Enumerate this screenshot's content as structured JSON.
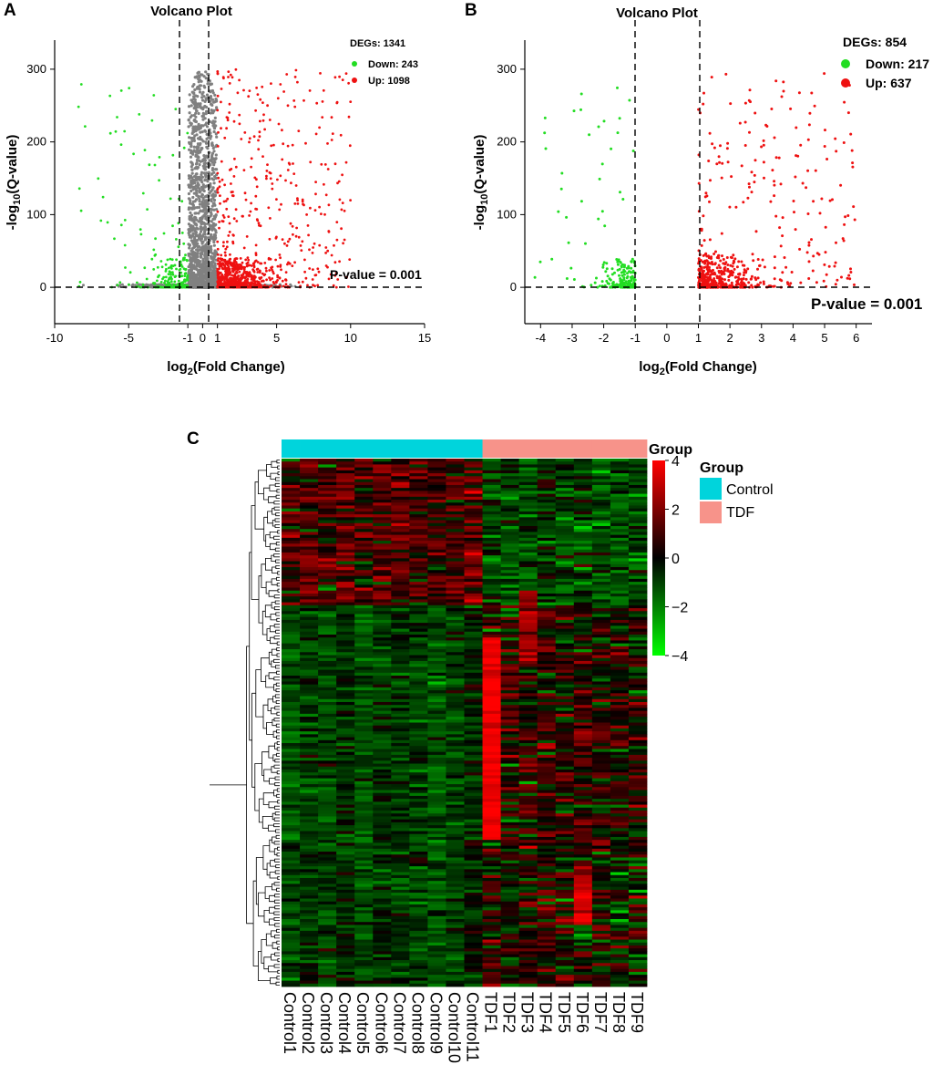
{
  "chart_data": [
    {
      "panel": "A",
      "type": "scatter",
      "title": "Volcano Plot",
      "xlabel": "log2(Fold Change)",
      "ylabel": "-log10(Q-value)",
      "xlim": [
        -10,
        15
      ],
      "ylim": [
        -50,
        340
      ],
      "xticks": [
        -10,
        -5,
        -1,
        0,
        1,
        5,
        10,
        15
      ],
      "yticks": [
        0,
        100,
        200,
        300
      ],
      "fc_threshold_lines": [
        -1,
        1
      ],
      "pvalue_line": 0,
      "pvalue_label": "P-value = 0.001",
      "degs_label": "DEGs: 1341",
      "legend": [
        {
          "label": "Down: 243",
          "color": "#22dd22"
        },
        {
          "label": "Up: 1098",
          "color": "#ee1111"
        }
      ],
      "series": [
        {
          "name": "Down",
          "color": "#22dd22",
          "count": 243
        },
        {
          "name": "Up",
          "color": "#ee1111",
          "count": 1098
        },
        {
          "name": "Not significant",
          "color": "#888888"
        }
      ]
    },
    {
      "panel": "B",
      "type": "scatter",
      "title": "Volcano Plot",
      "xlabel": "log2(Fold Change)",
      "ylabel": "-log10(Q-value)",
      "xlim": [
        -4.5,
        6.5
      ],
      "ylim": [
        -50,
        340
      ],
      "xticks": [
        -4,
        -3,
        -2,
        -1,
        0,
        1,
        2,
        3,
        4,
        5,
        6
      ],
      "yticks": [
        0,
        100,
        200,
        300
      ],
      "fc_threshold_lines": [
        -1,
        1
      ],
      "pvalue_line": 0,
      "pvalue_label": "P-value = 0.001",
      "degs_label": "DEGs: 854",
      "legend": [
        {
          "label": "Down: 217",
          "color": "#22dd22"
        },
        {
          "label": "Up: 637",
          "color": "#ee1111"
        }
      ],
      "series": [
        {
          "name": "Down",
          "color": "#22dd22",
          "count": 217
        },
        {
          "name": "Up",
          "color": "#ee1111",
          "count": 637
        }
      ]
    },
    {
      "panel": "C",
      "type": "heatmap",
      "columns": [
        "Control1",
        "Control2",
        "Control3",
        "Control4",
        "Control5",
        "Control6",
        "Control7",
        "Control8",
        "Control9",
        "Control10",
        "Control11",
        "TDF1",
        "TDF2",
        "TDF3",
        "TDF4",
        "TDF5",
        "TDF6",
        "TDF7",
        "TDF8",
        "TDF9"
      ],
      "groups": [
        "Control",
        "Control",
        "Control",
        "Control",
        "Control",
        "Control",
        "Control",
        "Control",
        "Control",
        "Control",
        "Control",
        "TDF",
        "TDF",
        "TDF",
        "TDF",
        "TDF",
        "TDF",
        "TDF",
        "TDF",
        "TDF"
      ],
      "group_annotation_label": "Group",
      "legend_title": "Group",
      "legend": [
        {
          "label": "Control",
          "color": "#00d4dc"
        },
        {
          "label": "TDF",
          "color": "#f7938a"
        }
      ],
      "colorbar": {
        "min": -4,
        "max": 4,
        "ticks": [
          "4",
          "2",
          "0",
          "−2",
          "−4"
        ],
        "colors": [
          "#ff0000",
          "#000000",
          "#00ff00"
        ]
      }
    }
  ]
}
